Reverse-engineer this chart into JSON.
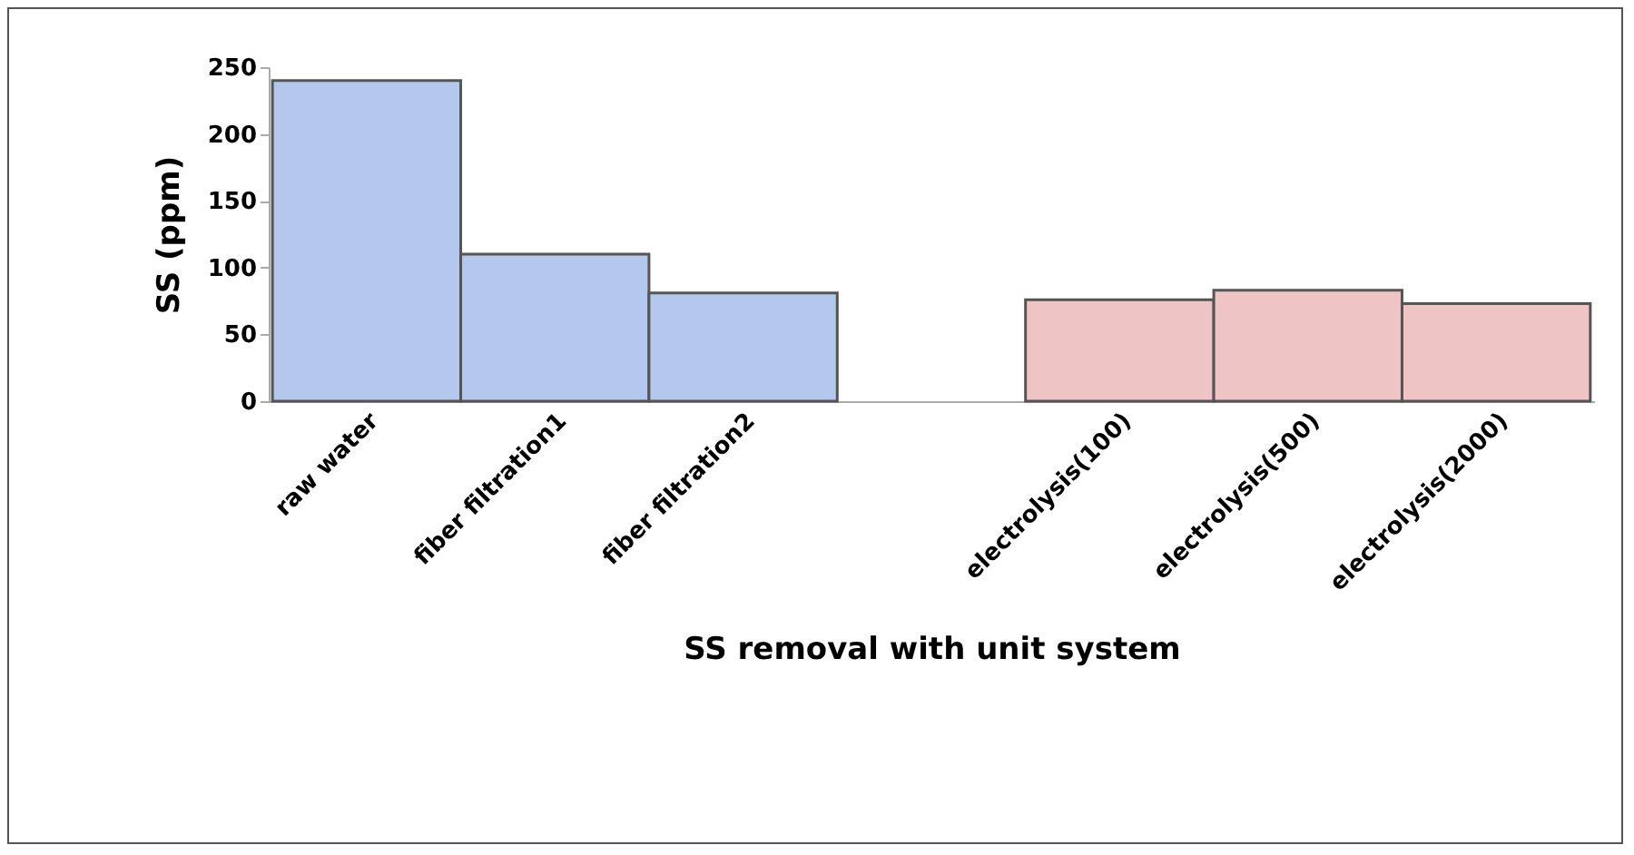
{
  "chart_data": {
    "type": "bar",
    "xlabel": "SS removal with unit system",
    "ylabel": "SS  (ppm)",
    "categories": [
      "raw water",
      "fiber filtration1",
      "fiber filtration2",
      null,
      "electrolysis(100)",
      "electrolysis(500)",
      "electrolysis(2000)"
    ],
    "values": [
      240,
      110,
      81,
      null,
      76,
      83,
      73
    ],
    "colors": [
      "#b4c7ec",
      "#b4c7ec",
      "#b4c7ec",
      null,
      "#efc4c4",
      "#efc4c4",
      "#efc4c4"
    ],
    "ylim": [
      0,
      250
    ],
    "yticks": [
      0,
      50,
      100,
      150,
      200,
      250
    ],
    "grid": false
  }
}
